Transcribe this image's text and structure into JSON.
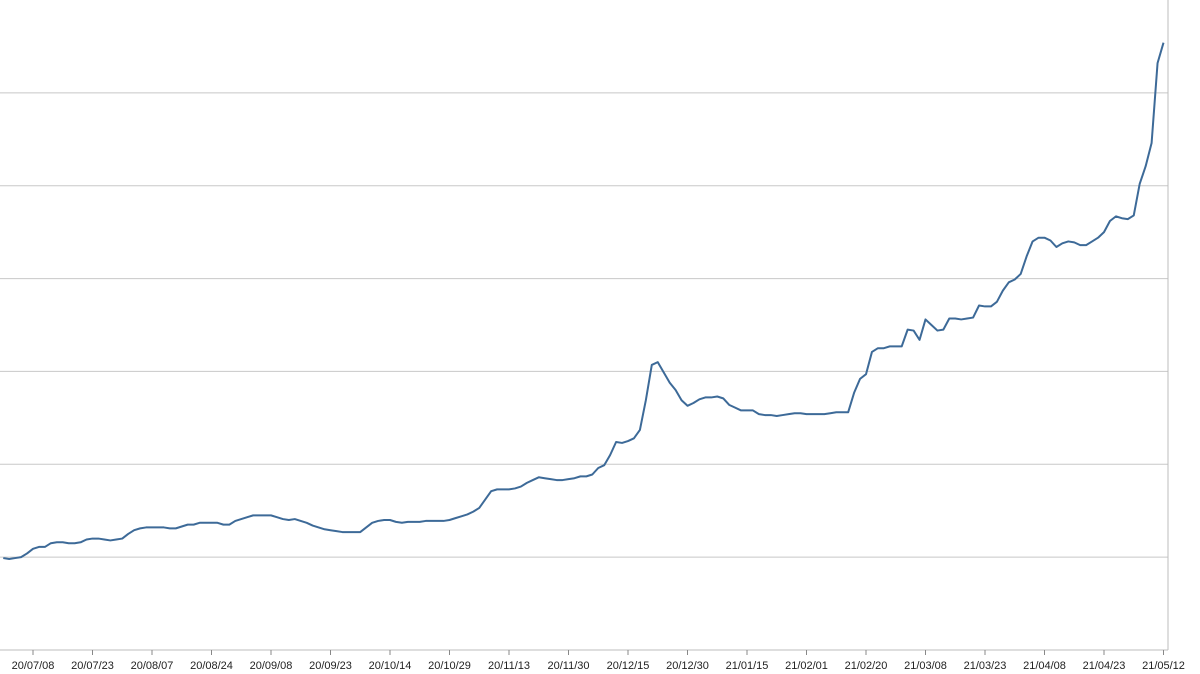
{
  "chart_data": {
    "type": "line",
    "categories": [
      null,
      null,
      null,
      null,
      null,
      "20/07/08",
      null,
      null,
      null,
      null,
      null,
      null,
      null,
      null,
      null,
      "20/07/23",
      null,
      null,
      null,
      null,
      null,
      null,
      null,
      null,
      null,
      "20/08/07",
      null,
      null,
      null,
      null,
      null,
      null,
      null,
      null,
      null,
      "20/08/24",
      null,
      null,
      null,
      null,
      null,
      null,
      null,
      null,
      null,
      "20/09/08",
      null,
      null,
      null,
      null,
      null,
      null,
      null,
      null,
      null,
      "20/09/23",
      null,
      null,
      null,
      null,
      null,
      null,
      null,
      null,
      null,
      "20/10/14",
      null,
      null,
      null,
      null,
      null,
      null,
      null,
      null,
      null,
      "20/10/29",
      null,
      null,
      null,
      null,
      null,
      null,
      null,
      null,
      null,
      "20/11/13",
      null,
      null,
      null,
      null,
      null,
      null,
      null,
      null,
      null,
      "20/11/30",
      null,
      null,
      null,
      null,
      null,
      null,
      null,
      null,
      null,
      "20/12/15",
      null,
      null,
      null,
      null,
      null,
      null,
      null,
      null,
      null,
      "20/12/30",
      null,
      null,
      null,
      null,
      null,
      null,
      null,
      null,
      null,
      "21/01/15",
      null,
      null,
      null,
      null,
      null,
      null,
      null,
      null,
      null,
      "21/02/01",
      null,
      null,
      null,
      null,
      null,
      null,
      null,
      null,
      null,
      "21/02/20",
      null,
      null,
      null,
      null,
      null,
      null,
      null,
      null,
      null,
      "21/03/08",
      null,
      null,
      null,
      null,
      null,
      null,
      null,
      null,
      null,
      "21/03/23",
      null,
      null,
      null,
      null,
      null,
      null,
      null,
      null,
      null,
      "21/04/08",
      null,
      null,
      null,
      null,
      null,
      null,
      null,
      null,
      null,
      "21/04/23",
      null,
      null,
      null,
      null,
      null,
      null,
      null,
      null,
      null,
      "21/05/12"
    ],
    "values": [
      99,
      98,
      99,
      100,
      104,
      109,
      111,
      111,
      115,
      116,
      116,
      115,
      115,
      116,
      119,
      120,
      120,
      119,
      118,
      119,
      120,
      125,
      129,
      131,
      132,
      132,
      132,
      132,
      131,
      131,
      133,
      135,
      135,
      137,
      137,
      137,
      137,
      135,
      135,
      139,
      141,
      143,
      145,
      145,
      145,
      145,
      143,
      141,
      140,
      141,
      139,
      137,
      134,
      132,
      130,
      129,
      128,
      127,
      127,
      127,
      127,
      132,
      137,
      139,
      140,
      140,
      138,
      137,
      138,
      138,
      138,
      139,
      139,
      139,
      139,
      140,
      142,
      144,
      146,
      149,
      153,
      162,
      171,
      173,
      173,
      173,
      174,
      176,
      180,
      183,
      186,
      185,
      184,
      183,
      183,
      184,
      185,
      187,
      187,
      189,
      196,
      199,
      210,
      224,
      223,
      225,
      228,
      237,
      269,
      307,
      310,
      299,
      288,
      280,
      269,
      263,
      266,
      270,
      272,
      272,
      273,
      271,
      264,
      261,
      258,
      258,
      258,
      254,
      253,
      253,
      252,
      253,
      254,
      255,
      255,
      254,
      254,
      254,
      254,
      255,
      256,
      256,
      256,
      277,
      292,
      297,
      321,
      325,
      325,
      327,
      327,
      327,
      345,
      344,
      334,
      356,
      350,
      344,
      345,
      357,
      357,
      356,
      357,
      358,
      371,
      370,
      370,
      375,
      387,
      396,
      399,
      405,
      424,
      440,
      444,
      444,
      441,
      434,
      438,
      440,
      439,
      436,
      436,
      440,
      444,
      450,
      462,
      467,
      465,
      464,
      468,
      502,
      521,
      546,
      632,
      654
    ],
    "color": "#3d6a98",
    "ylim": [
      0,
      700
    ],
    "yticks": [
      100,
      200,
      300,
      400,
      500,
      600
    ],
    "grid": true
  }
}
